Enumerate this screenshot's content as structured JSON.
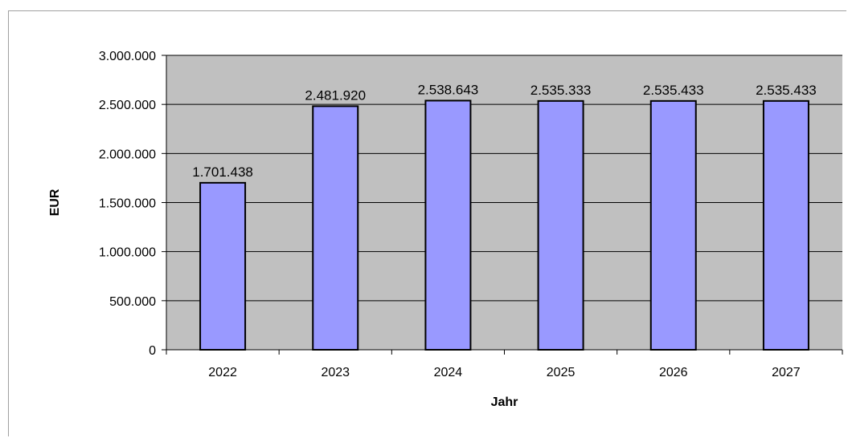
{
  "chart_data": {
    "type": "bar",
    "title": "",
    "xlabel": "Jahr",
    "ylabel": "EUR",
    "categories": [
      "2022",
      "2023",
      "2024",
      "2025",
      "2026",
      "2027"
    ],
    "values": [
      1701438,
      2481920,
      2538643,
      2535333,
      2535433,
      2535433
    ],
    "data_labels": [
      "1.701.438",
      "2.481.920",
      "2.538.643",
      "2.535.333",
      "2.535.433",
      "2.535.433"
    ],
    "ylim": [
      0,
      3000000
    ],
    "yticks": [
      0,
      500000,
      1000000,
      1500000,
      2000000,
      2500000,
      3000000
    ],
    "ytick_labels": [
      "0",
      "500.000",
      "1.000.000",
      "1.500.000",
      "2.000.000",
      "2.500.000",
      "3.000.000"
    ],
    "grid": true,
    "legend": "none",
    "colors": {
      "bar_fill": "#9999ff",
      "bar_stroke": "#000000",
      "plot_background": "#c0c0c0",
      "gridline": "#000000"
    }
  }
}
